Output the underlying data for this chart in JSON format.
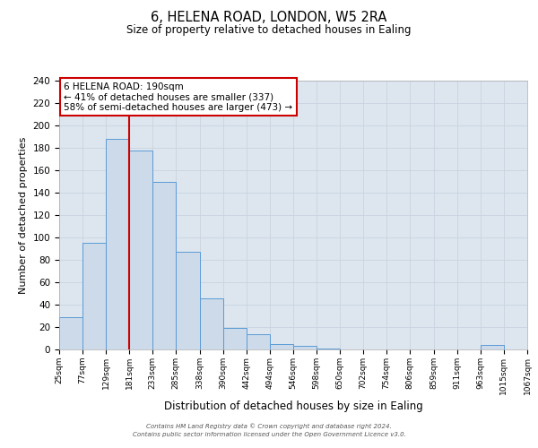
{
  "title": "6, HELENA ROAD, LONDON, W5 2RA",
  "subtitle": "Size of property relative to detached houses in Ealing",
  "xlabel": "Distribution of detached houses by size in Ealing",
  "ylabel": "Number of detached properties",
  "annotation_line1": "6 HELENA ROAD: 190sqm",
  "annotation_line2": "← 41% of detached houses are smaller (337)",
  "annotation_line3": "58% of semi-detached houses are larger (473) →",
  "bin_edges": [
    25,
    77,
    129,
    181,
    233,
    285,
    338,
    390,
    442,
    494,
    546,
    598,
    650,
    702,
    754,
    806,
    859,
    911,
    963,
    1015,
    1067
  ],
  "bin_counts": [
    29,
    95,
    188,
    178,
    150,
    87,
    46,
    19,
    14,
    5,
    3,
    1,
    0,
    0,
    0,
    0,
    0,
    0,
    4,
    0
  ],
  "bar_facecolor": "#ccdaea",
  "bar_edgecolor": "#5b9bd5",
  "vline_color": "#cc0000",
  "vline_x": 181,
  "grid_color": "#c8d4e0",
  "background_color": "#dde6ef",
  "annotation_box_edgecolor": "#cc0000",
  "ylim": [
    0,
    240
  ],
  "yticks": [
    0,
    20,
    40,
    60,
    80,
    100,
    120,
    140,
    160,
    180,
    200,
    220,
    240
  ],
  "footer_line1": "Contains HM Land Registry data © Crown copyright and database right 2024.",
  "footer_line2": "Contains public sector information licensed under the Open Government Licence v3.0."
}
